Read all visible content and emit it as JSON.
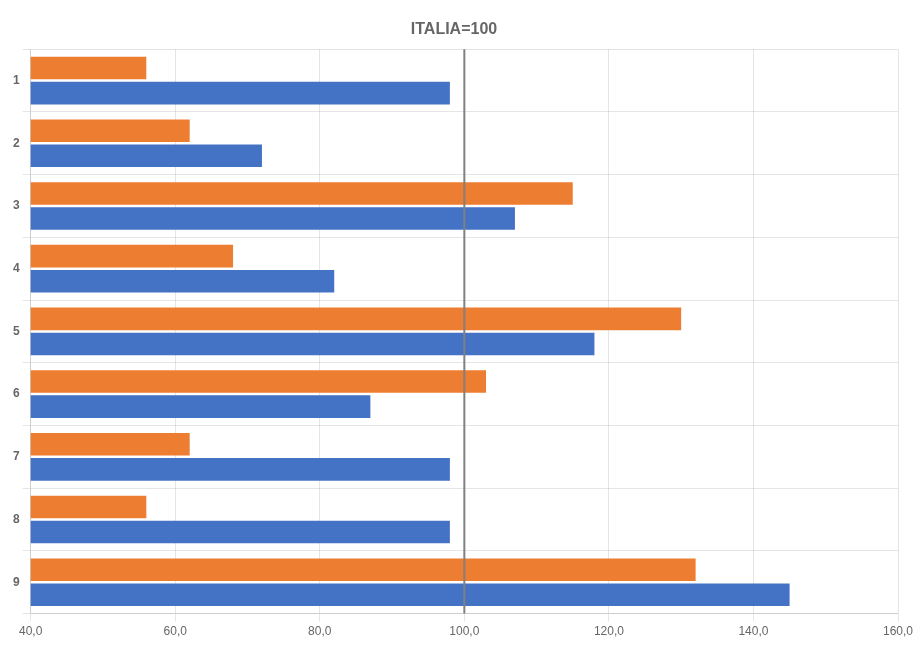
{
  "chart_data": {
    "type": "bar",
    "orientation": "horizontal",
    "title": "ITALIA=100",
    "categories": [
      "1",
      "2",
      "3",
      "4",
      "5",
      "6",
      "7",
      "8",
      "9"
    ],
    "series": [
      {
        "color": "#ED7D31",
        "values": [
          56,
          62,
          115,
          68,
          130,
          103,
          62,
          56,
          132
        ]
      },
      {
        "color": "#4472C4",
        "values": [
          98,
          72,
          107,
          82,
          118,
          87,
          98,
          98,
          145
        ]
      }
    ],
    "xlim": [
      40,
      160
    ],
    "xticks": [
      {
        "value": 40,
        "label": "40,0"
      },
      {
        "value": 60,
        "label": "60,0"
      },
      {
        "value": 80,
        "label": "80,0"
      },
      {
        "value": 100,
        "label": "100,0"
      },
      {
        "value": 120,
        "label": "120,0"
      },
      {
        "value": 140,
        "label": "140,0"
      },
      {
        "value": 160,
        "label": "160,0"
      }
    ],
    "vline": 100,
    "grid": true
  }
}
